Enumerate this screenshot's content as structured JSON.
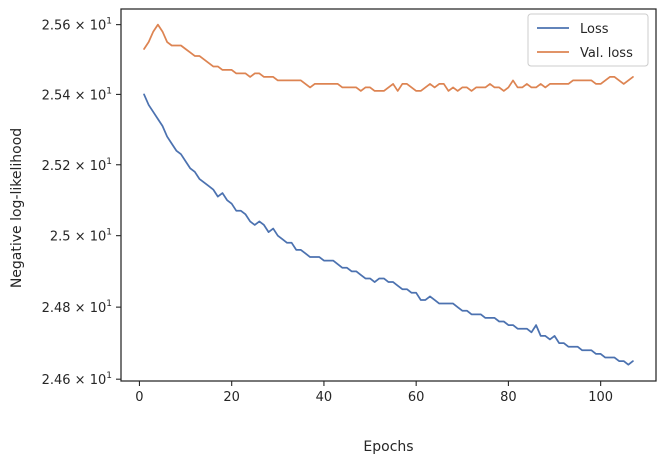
{
  "chart_data": {
    "type": "line",
    "xlabel": "Epochs",
    "ylabel": "Negative log-likelihood",
    "xlim": [
      -4,
      112
    ],
    "ylim": [
      24.595,
      25.645
    ],
    "log_y": true,
    "grid": false,
    "legend_position": "top-right",
    "x_ticks": [
      0,
      20,
      40,
      60,
      80,
      100
    ],
    "x_tick_labels": [
      "0",
      "20",
      "40",
      "60",
      "80",
      "100"
    ],
    "y_ticks": [
      24.6,
      24.8,
      25.0,
      25.2,
      25.4,
      25.6
    ],
    "y_tick_labels": [
      {
        "mantissa": "2.46",
        "exp": "1"
      },
      {
        "mantissa": "2.48",
        "exp": "1"
      },
      {
        "mantissa": "2.5",
        "exp": "1"
      },
      {
        "mantissa": "2.52",
        "exp": "1"
      },
      {
        "mantissa": "2.54",
        "exp": "1"
      },
      {
        "mantissa": "2.56",
        "exp": "1"
      }
    ],
    "x": [
      1,
      2,
      3,
      4,
      5,
      6,
      7,
      8,
      9,
      10,
      11,
      12,
      13,
      14,
      15,
      16,
      17,
      18,
      19,
      20,
      21,
      22,
      23,
      24,
      25,
      26,
      27,
      28,
      29,
      30,
      31,
      32,
      33,
      34,
      35,
      36,
      37,
      38,
      39,
      40,
      41,
      42,
      43,
      44,
      45,
      46,
      47,
      48,
      49,
      50,
      51,
      52,
      53,
      54,
      55,
      56,
      57,
      58,
      59,
      60,
      61,
      62,
      63,
      64,
      65,
      66,
      67,
      68,
      69,
      70,
      71,
      72,
      73,
      74,
      75,
      76,
      77,
      78,
      79,
      80,
      81,
      82,
      83,
      84,
      85,
      86,
      87,
      88,
      89,
      90,
      91,
      92,
      93,
      94,
      95,
      96,
      97,
      98,
      99,
      100,
      101,
      102,
      103,
      104,
      105,
      106,
      107
    ],
    "series": [
      {
        "name": "Loss",
        "color": "#4c72b0",
        "values": [
          25.4,
          25.37,
          25.35,
          25.33,
          25.31,
          25.28,
          25.26,
          25.24,
          25.23,
          25.21,
          25.19,
          25.18,
          25.16,
          25.15,
          25.14,
          25.13,
          25.11,
          25.12,
          25.1,
          25.09,
          25.07,
          25.07,
          25.06,
          25.04,
          25.03,
          25.04,
          25.03,
          25.01,
          25.02,
          25.0,
          24.99,
          24.98,
          24.98,
          24.96,
          24.96,
          24.95,
          24.94,
          24.94,
          24.94,
          24.93,
          24.93,
          24.93,
          24.92,
          24.91,
          24.91,
          24.9,
          24.9,
          24.89,
          24.88,
          24.88,
          24.87,
          24.88,
          24.88,
          24.87,
          24.87,
          24.86,
          24.85,
          24.85,
          24.84,
          24.84,
          24.82,
          24.82,
          24.83,
          24.82,
          24.81,
          24.81,
          24.81,
          24.81,
          24.8,
          24.79,
          24.79,
          24.78,
          24.78,
          24.78,
          24.77,
          24.77,
          24.77,
          24.76,
          24.76,
          24.75,
          24.75,
          24.74,
          24.74,
          24.74,
          24.73,
          24.75,
          24.72,
          24.72,
          24.71,
          24.72,
          24.7,
          24.7,
          24.69,
          24.69,
          24.69,
          24.68,
          24.68,
          24.68,
          24.67,
          24.67,
          24.66,
          24.66,
          24.66,
          24.65,
          24.65,
          24.64,
          24.65
        ]
      },
      {
        "name": "Val. loss",
        "color": "#dd8452",
        "values": [
          25.53,
          25.55,
          25.58,
          25.6,
          25.58,
          25.55,
          25.54,
          25.54,
          25.54,
          25.53,
          25.52,
          25.51,
          25.51,
          25.5,
          25.49,
          25.48,
          25.48,
          25.47,
          25.47,
          25.47,
          25.46,
          25.46,
          25.46,
          25.45,
          25.46,
          25.46,
          25.45,
          25.45,
          25.45,
          25.44,
          25.44,
          25.44,
          25.44,
          25.44,
          25.44,
          25.43,
          25.42,
          25.43,
          25.43,
          25.43,
          25.43,
          25.43,
          25.43,
          25.42,
          25.42,
          25.42,
          25.42,
          25.41,
          25.42,
          25.42,
          25.41,
          25.41,
          25.41,
          25.42,
          25.43,
          25.41,
          25.43,
          25.43,
          25.42,
          25.41,
          25.41,
          25.42,
          25.43,
          25.42,
          25.43,
          25.43,
          25.41,
          25.42,
          25.41,
          25.42,
          25.42,
          25.41,
          25.42,
          25.42,
          25.42,
          25.43,
          25.42,
          25.42,
          25.41,
          25.42,
          25.44,
          25.42,
          25.42,
          25.43,
          25.42,
          25.42,
          25.43,
          25.42,
          25.43,
          25.43,
          25.43,
          25.43,
          25.43,
          25.44,
          25.44,
          25.44,
          25.44,
          25.44,
          25.43,
          25.43,
          25.44,
          25.45,
          25.45,
          25.44,
          25.43,
          25.44,
          25.45
        ]
      }
    ]
  }
}
